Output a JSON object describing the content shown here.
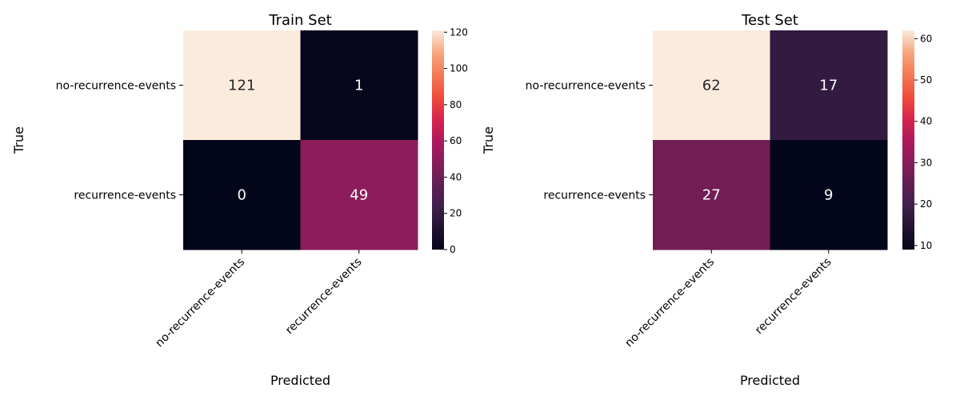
{
  "chart_data": [
    {
      "type": "heatmap",
      "title": "Train Set",
      "xlabel": "Predicted",
      "ylabel": "True",
      "x_categories": [
        "no-recurrence-events",
        "recurrence-events"
      ],
      "y_categories": [
        "no-recurrence-events",
        "recurrence-events"
      ],
      "values": [
        [
          121,
          1
        ],
        [
          0,
          49
        ]
      ],
      "colorbar": {
        "min": 0,
        "max": 121,
        "ticks": [
          0,
          20,
          40,
          60,
          80,
          100,
          120
        ]
      },
      "colormap": "rocket"
    },
    {
      "type": "heatmap",
      "title": "Test Set",
      "xlabel": "Predicted",
      "ylabel": "True",
      "x_categories": [
        "no-recurrence-events",
        "recurrence-events"
      ],
      "y_categories": [
        "no-recurrence-events",
        "recurrence-events"
      ],
      "values": [
        [
          62,
          17
        ],
        [
          27,
          9
        ]
      ],
      "colorbar": {
        "min": 9,
        "max": 62,
        "ticks": [
          10,
          20,
          30,
          40,
          50,
          60
        ]
      },
      "colormap": "rocket"
    }
  ]
}
